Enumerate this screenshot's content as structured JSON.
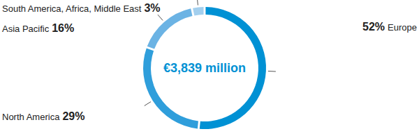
{
  "chart_data": {
    "type": "pie",
    "title": "€3,839 million",
    "categories": [
      "Europe",
      "North America",
      "Asia Pacific",
      "South America, Africa, Middle East"
    ],
    "values": [
      52,
      29,
      16,
      3
    ],
    "value_labels": [
      "52%",
      "29%",
      "16%",
      "3%"
    ],
    "colors": [
      "#0091d4",
      "#2f9edb",
      "#6bb3e4",
      "#a3cfee"
    ],
    "data_labels": true
  }
}
